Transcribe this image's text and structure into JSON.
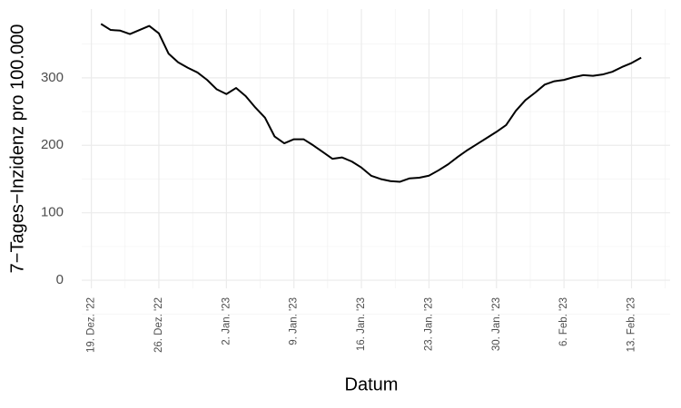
{
  "chart_data": {
    "type": "line",
    "x_label": "Datum",
    "y_label": "7−Tages−Inzidenz pro 100.000",
    "x": [
      "2022-12-20",
      "2022-12-21",
      "2022-12-22",
      "2022-12-23",
      "2022-12-24",
      "2022-12-25",
      "2022-12-26",
      "2022-12-27",
      "2022-12-28",
      "2022-12-29",
      "2022-12-30",
      "2022-12-31",
      "2023-01-01",
      "2023-01-02",
      "2023-01-03",
      "2023-01-04",
      "2023-01-05",
      "2023-01-06",
      "2023-01-07",
      "2023-01-08",
      "2023-01-09",
      "2023-01-10",
      "2023-01-11",
      "2023-01-12",
      "2023-01-13",
      "2023-01-14",
      "2023-01-15",
      "2023-01-16",
      "2023-01-17",
      "2023-01-18",
      "2023-01-19",
      "2023-01-20",
      "2023-01-21",
      "2023-01-22",
      "2023-01-23",
      "2023-01-24",
      "2023-01-25",
      "2023-01-26",
      "2023-01-27",
      "2023-01-28",
      "2023-01-29",
      "2023-01-30",
      "2023-01-31",
      "2023-02-01",
      "2023-02-02",
      "2023-02-03",
      "2023-02-04",
      "2023-02-05",
      "2023-02-06",
      "2023-02-07",
      "2023-02-08",
      "2023-02-09",
      "2023-02-10",
      "2023-02-11",
      "2023-02-12",
      "2023-02-13",
      "2023-02-14"
    ],
    "values": [
      380,
      371,
      370,
      365,
      371,
      377,
      366,
      336,
      323,
      315,
      308,
      297,
      283,
      276,
      285,
      273,
      256,
      241,
      213,
      203,
      209,
      209,
      200,
      190,
      180,
      182,
      176,
      167,
      155,
      150,
      147,
      146,
      151,
      152,
      155,
      163,
      172,
      183,
      193,
      202,
      211,
      220,
      230,
      251,
      267,
      278,
      290,
      295,
      297,
      301,
      304,
      303,
      305,
      309,
      316,
      322,
      330
    ],
    "color": "#000000",
    "xlim": [
      "2022-12-18",
      "2023-02-17"
    ],
    "xticks": [
      {
        "value": "2022-12-19",
        "label": "19. Dez. '22"
      },
      {
        "value": "2022-12-26",
        "label": "26. Dez. '22"
      },
      {
        "value": "2023-01-02",
        "label": "2. Jan. '23"
      },
      {
        "value": "2023-01-09",
        "label": "9. Jan. '23"
      },
      {
        "value": "2023-01-16",
        "label": "16. Jan. '23"
      },
      {
        "value": "2023-01-23",
        "label": "23. Jan. '23"
      },
      {
        "value": "2023-01-30",
        "label": "30. Jan. '23"
      },
      {
        "value": "2023-02-06",
        "label": "6. Feb. '23"
      },
      {
        "value": "2023-02-13",
        "label": "13. Feb. '23"
      }
    ],
    "ylim": [
      -12,
      402
    ],
    "yticks": [
      0,
      100,
      200,
      300
    ],
    "grid": true
  }
}
